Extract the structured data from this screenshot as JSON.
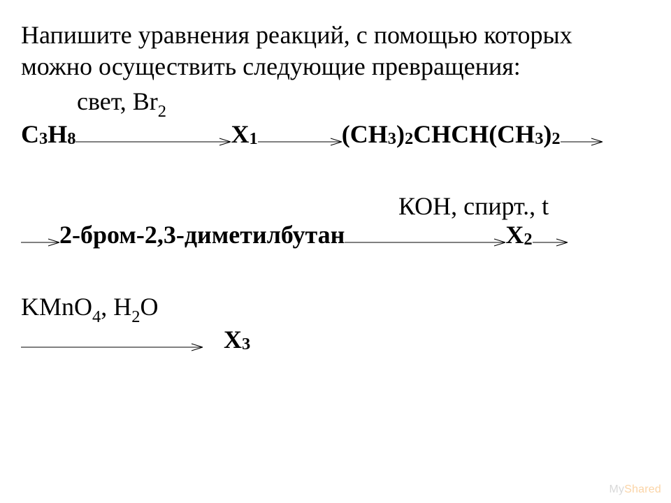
{
  "colors": {
    "background": "#ffffff",
    "text": "#000000",
    "arrow_stroke": "#000000",
    "watermark_my": "#d9d9d9",
    "watermark_shared": "#fbd4a6"
  },
  "typography": {
    "body_font": "Times New Roman",
    "body_size_pt": 27,
    "bold_weight": 700,
    "watermark_font": "Arial",
    "watermark_size_pt": 12
  },
  "intro": {
    "line1": "Напишите уравнения реакций, с помощью которых",
    "line2": "можно осуществить следующие превращения:"
  },
  "scheme": {
    "cond1_prefix": "свет, Br",
    "cond1_sub": "2",
    "start_formula": {
      "parts": [
        "C",
        "3",
        "H",
        "8"
      ]
    },
    "X1": {
      "base": "X",
      "sub": "1"
    },
    "product1": {
      "leading": "(CH",
      "s1": "3",
      "mid1": ")",
      "s2": "2",
      "mid2": "CHCH(CH",
      "s3": "3",
      "mid3": ")",
      "s4": "2"
    },
    "cond2": "КОН, спирт., t",
    "intermediate": "2-бром-2,3-диметилбутан",
    "X2": {
      "base": "X",
      "sub": "2"
    },
    "cond3": {
      "p1": "KMnO",
      "s1": "4",
      "p2": ", H",
      "s2": "2",
      "p3": "O"
    },
    "X3": {
      "base": "X",
      "sub": "3"
    }
  },
  "arrows": {
    "stroke_width": 1,
    "head_length": 16,
    "head_half_height": 5,
    "a1_len": 222,
    "a2_len": 120,
    "a3_len": 60,
    "a4_len": 55,
    "a5_len": 230,
    "a6_len": 50,
    "a7_len": 260
  },
  "watermark": {
    "my": "My",
    "shared": "Shared"
  }
}
